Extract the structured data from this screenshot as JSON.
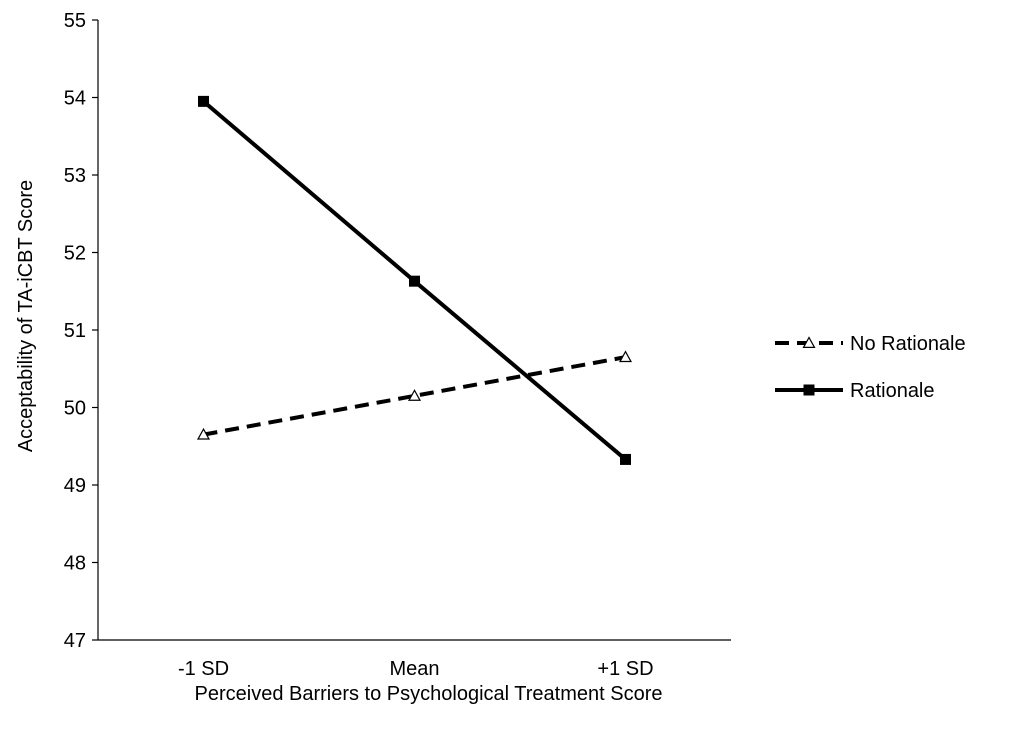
{
  "chart_data": {
    "type": "line",
    "title": "",
    "xlabel": "Perceived Barriers to Psychological Treatment Score",
    "ylabel": "Acceptability of TA-iCBT Score",
    "categories": [
      "-1 SD",
      "Mean",
      "+1 SD"
    ],
    "ylim": [
      47,
      55
    ],
    "yticks": [
      47,
      48,
      49,
      50,
      51,
      52,
      53,
      54,
      55
    ],
    "grid": false,
    "legend_position": "right",
    "series": [
      {
        "name": "No Rationale",
        "values": [
          49.65,
          50.15,
          50.65
        ],
        "line_style": "dashed",
        "marker": "triangle-open",
        "color": "#000000"
      },
      {
        "name": "Rationale",
        "values": [
          53.95,
          51.63,
          49.33
        ],
        "line_style": "solid",
        "marker": "square-filled",
        "color": "#000000"
      }
    ]
  }
}
